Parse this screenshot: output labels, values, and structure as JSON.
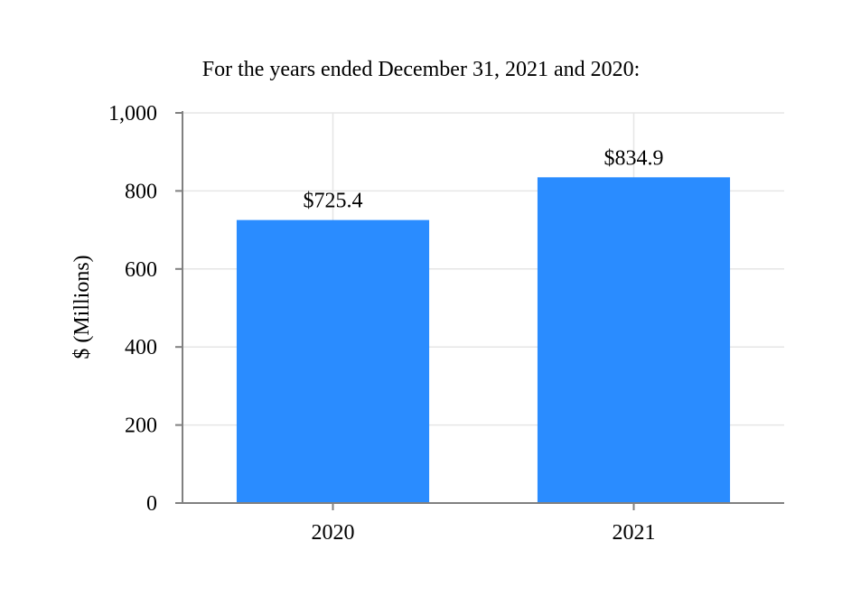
{
  "chart_data": {
    "type": "bar",
    "title": "For the years ended December 31, 2021 and 2020:",
    "xlabel": "",
    "ylabel": "$ (Millions)",
    "categories": [
      "2020",
      "2021"
    ],
    "values": [
      725.4,
      834.9
    ],
    "data_labels": [
      "$725.4",
      "$834.9"
    ],
    "ylim": [
      0,
      1000
    ],
    "yticks": [
      0,
      200,
      400,
      600,
      800,
      1000
    ],
    "ytick_labels": [
      "0",
      "200",
      "400",
      "600",
      "800",
      "1,000"
    ],
    "grid": true,
    "legend": "none",
    "colors": {
      "bar": "#2A8CFF",
      "grid": "#E6E6E6",
      "axis": "#808080"
    }
  }
}
